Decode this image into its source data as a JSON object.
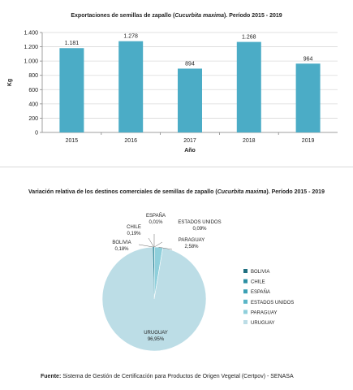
{
  "charts": [
    {
      "type": "bar",
      "title_pre": "Exportaciones de semillas de zapallo (",
      "title_italic": "Cucurbita maxima",
      "title_post": "). Período 2015 - 2019",
      "xlabel": "Año",
      "ylabel": "Kg",
      "categories": [
        "2015",
        "2016",
        "2017",
        "2018",
        "2019"
      ],
      "values": [
        1181,
        1278,
        894,
        1268,
        964
      ],
      "value_labels": [
        "1.181",
        "1.278",
        "894",
        "1.268",
        "964"
      ],
      "ylim": [
        0,
        1400
      ],
      "yticks": [
        0,
        200,
        400,
        600,
        800,
        1000,
        1200,
        1400
      ],
      "ytick_labels": [
        "0",
        "200",
        "400",
        "600",
        "800",
        "1.000",
        "1.200",
        "1.400"
      ],
      "grid": true,
      "color": "#4bacc6"
    },
    {
      "type": "pie",
      "title_pre": "Variación relativa de los destinos comerciales de semillas de zapallo (",
      "title_italic": "Cucurbita  maxima",
      "title_post": "). Período 2015 - 2019",
      "slices": [
        {
          "name": "BOLIVIA",
          "value": 0.18,
          "label": "0,18%",
          "color": "#1f6f80"
        },
        {
          "name": "CHILE",
          "value": 0.19,
          "label": "0,19%",
          "color": "#2b8fa3"
        },
        {
          "name": "ESPAÑA",
          "value": 0.01,
          "label": "0,01%",
          "color": "#3aa0b4"
        },
        {
          "name": "ESTADOS UNIDOS",
          "value": 0.09,
          "label": "0,09%",
          "color": "#5ab6c7"
        },
        {
          "name": "PARAGUAY",
          "value": 2.58,
          "label": "2,58%",
          "color": "#8fcfdb"
        },
        {
          "name": "URUGUAY",
          "value": 96.95,
          "label": "96,95%",
          "color": "#bcdde6"
        }
      ],
      "legend_position": "right"
    }
  ],
  "source": {
    "label": "Fuente:",
    "text": " Sistema de Gestión de Certificación para Productos de Origen Vegetal (Certpov) - SENASA"
  }
}
